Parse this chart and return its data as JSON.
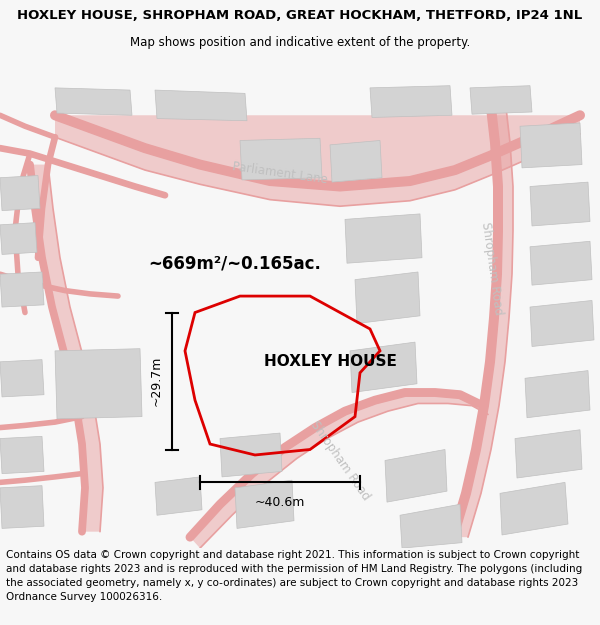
{
  "title": "HOXLEY HOUSE, SHROPHAM ROAD, GREAT HOCKHAM, THETFORD, IP24 1NL",
  "subtitle": "Map shows position and indicative extent of the property.",
  "footer": "Contains OS data © Crown copyright and database right 2021. This information is subject to Crown copyright and database rights 2023 and is reproduced with the permission of HM Land Registry. The polygons (including the associated geometry, namely x, y co-ordinates) are subject to Crown copyright and database rights 2023 Ordnance Survey 100026316.",
  "bg_color": "#f7f7f7",
  "map_bg": "#ffffff",
  "road_color": "#e8a0a0",
  "building_color": "#d3d3d3",
  "building_edge": "#c0c0c0",
  "plot_color": "#dd0000",
  "plot_label": "HOXLEY HOUSE",
  "area_label": "~669m²/~0.165ac.",
  "dim_width_label": "~40.6m",
  "dim_height_label": "~29.7m",
  "road_label_parliament": "Parliament Lane",
  "road_label_shropham_r": "Shropham Road",
  "road_label_shropham_b": "Shropham Road",
  "title_fontsize": 9.5,
  "subtitle_fontsize": 8.5,
  "footer_fontsize": 7.5
}
